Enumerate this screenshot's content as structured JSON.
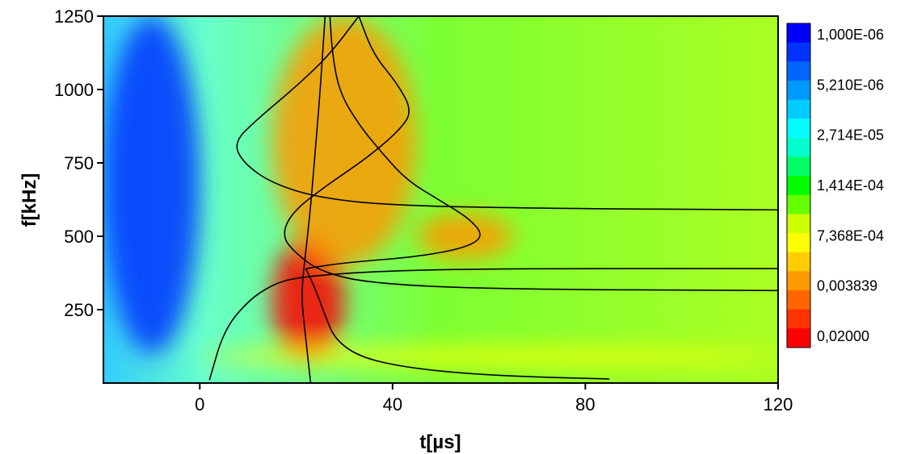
{
  "chart_data": {
    "type": "heatmap",
    "title": "",
    "xlabel": "t[µs]",
    "ylabel": "f[kHz]",
    "xlim": [
      -20,
      120
    ],
    "ylim": [
      0,
      1250
    ],
    "x_ticks": [
      0,
      40,
      80,
      120
    ],
    "y_ticks": [
      250,
      500,
      750,
      1000,
      1250
    ],
    "grid": false,
    "colorbar": {
      "placement": "right",
      "scale": "log",
      "colors": [
        "#ff0000",
        "#ff3300",
        "#ff6600",
        "#ff9900",
        "#ffcc00",
        "#ffff00",
        "#ccff00",
        "#66ff00",
        "#00ff00",
        "#00ff66",
        "#00ffcc",
        "#00ffff",
        "#00ccff",
        "#0099ff",
        "#0066ff",
        "#0033ff",
        "#0000ff"
      ],
      "labels": [
        "1,000E-06",
        "5,210E-06",
        "2,714E-05",
        "1,414E-04",
        "7,368E-04",
        "0,003839",
        "0,02000"
      ],
      "label_values": [
        1e-06,
        5.21e-06,
        2.714e-05,
        0.0001414,
        0.0007368,
        0.003839,
        0.02
      ]
    },
    "heat_features": [
      {
        "region": "low-energy",
        "level": 2e-06,
        "x_range": [
          -20,
          0
        ],
        "y_range": [
          100,
          1250
        ]
      },
      {
        "region": "max-energy",
        "level": 0.02,
        "x_range": [
          15,
          30
        ],
        "y_range": [
          60,
          500
        ]
      },
      {
        "region": "high-energy",
        "level": 0.004,
        "x_range": [
          15,
          45
        ],
        "y_range": [
          400,
          1250
        ]
      },
      {
        "region": "high-energy",
        "level": 0.004,
        "x_range": [
          45,
          65
        ],
        "y_range": [
          420,
          580
        ]
      },
      {
        "region": "mid-energy",
        "level": 0.0007,
        "x_range": [
          0,
          120
        ],
        "y_range": [
          60,
          120
        ]
      }
    ],
    "series": [
      {
        "type": "line",
        "color": "#000000",
        "points": [
          [
            2,
            10
          ],
          [
            5,
            180
          ],
          [
            10,
            280
          ],
          [
            15,
            335
          ],
          [
            20,
            360
          ],
          [
            35,
            380
          ],
          [
            60,
            390
          ],
          [
            120,
            390
          ]
        ]
      },
      {
        "type": "line",
        "color": "#000000",
        "points": [
          [
            23,
            0
          ],
          [
            22,
            150
          ],
          [
            21,
            300
          ],
          [
            22,
            450
          ],
          [
            23,
            600
          ],
          [
            24,
            800
          ],
          [
            25,
            1000
          ],
          [
            26,
            1250
          ]
        ]
      },
      {
        "type": "line",
        "color": "#000000",
        "points": [
          [
            120,
            590
          ],
          [
            70,
            595
          ],
          [
            40,
            605
          ],
          [
            25,
            630
          ],
          [
            15,
            680
          ],
          [
            9,
            750
          ],
          [
            7,
            820
          ],
          [
            12,
            900
          ],
          [
            20,
            1010
          ],
          [
            27,
            1120
          ],
          [
            33,
            1250
          ]
        ]
      },
      {
        "type": "line",
        "color": "#000000",
        "points": [
          [
            120,
            315
          ],
          [
            60,
            320
          ],
          [
            35,
            340
          ],
          [
            25,
            380
          ],
          [
            20,
            440
          ],
          [
            17,
            500
          ],
          [
            19,
            580
          ],
          [
            26,
            670
          ],
          [
            35,
            770
          ],
          [
            42,
            870
          ],
          [
            44,
            930
          ],
          [
            41,
            1020
          ],
          [
            36,
            1120
          ],
          [
            33,
            1250
          ]
        ]
      },
      {
        "type": "line",
        "color": "#000000",
        "points": [
          [
            27,
            1250
          ],
          [
            27.5,
            1120
          ],
          [
            29,
            990
          ],
          [
            33,
            880
          ],
          [
            38,
            780
          ],
          [
            43,
            690
          ],
          [
            50,
            620
          ],
          [
            56,
            560
          ],
          [
            59,
            500
          ],
          [
            55,
            460
          ],
          [
            45,
            430
          ],
          [
            30,
            410
          ],
          [
            22,
            390
          ]
        ]
      },
      {
        "type": "line",
        "color": "#000000",
        "points": [
          [
            22,
            390
          ],
          [
            24,
            320
          ],
          [
            26,
            230
          ],
          [
            28,
            150
          ],
          [
            33,
            90
          ],
          [
            42,
            55
          ],
          [
            55,
            32
          ],
          [
            70,
            20
          ],
          [
            85,
            14
          ]
        ]
      }
    ]
  }
}
